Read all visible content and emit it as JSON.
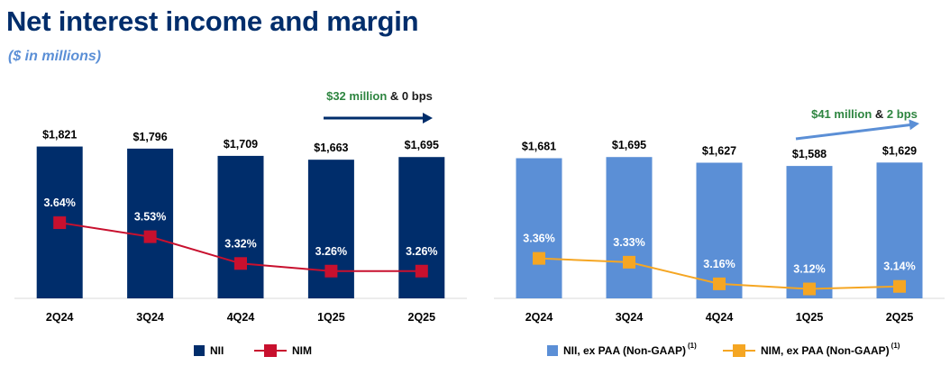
{
  "header": {
    "title": "Net interest income and margin",
    "subtitle": "($ in millions)"
  },
  "colors": {
    "title": "#002d6b",
    "subtitle": "#5b8fd6",
    "nii_bar": "#002d6b",
    "nim_line": "#c8102e",
    "nii_ex_bar": "#5b8fd6",
    "nim_ex_line": "#f5a623",
    "green_text": "#2e8540",
    "dark_arrow": "#002d6b",
    "light_arrow": "#5b8fd6"
  },
  "chart_data": [
    {
      "type": "bar",
      "categories": [
        "2Q24",
        "3Q24",
        "4Q24",
        "1Q25",
        "2Q25"
      ],
      "series": [
        {
          "name": "NII",
          "kind": "bar",
          "values": [
            1821,
            1796,
            1709,
            1663,
            1695
          ],
          "labels": [
            "$1,821",
            "$1,796",
            "$1,709",
            "$1,663",
            "$1,695"
          ]
        },
        {
          "name": "NIM",
          "kind": "line",
          "values": [
            3.64,
            3.53,
            3.32,
            3.26,
            3.26
          ],
          "labels": [
            "3.64%",
            "3.53%",
            "3.32%",
            "3.26%",
            "3.26%"
          ]
        }
      ],
      "legend": [
        {
          "label": "NII",
          "sup": ""
        },
        {
          "label": "NIM",
          "sup": ""
        }
      ],
      "callout": {
        "green": "$32 million",
        "amp": " & ",
        "dark": "0 bps"
      },
      "legend_position": "bottom",
      "grid": false
    },
    {
      "type": "bar",
      "categories": [
        "2Q24",
        "3Q24",
        "4Q24",
        "1Q25",
        "2Q25"
      ],
      "series": [
        {
          "name": "NII, ex PAA (Non-GAAP)",
          "kind": "bar",
          "values": [
            1681,
            1695,
            1627,
            1588,
            1629
          ],
          "labels": [
            "$1,681",
            "$1,695",
            "$1,627",
            "$1,588",
            "$1,629"
          ]
        },
        {
          "name": "NIM, ex PAA (Non-GAAP)",
          "kind": "line",
          "values": [
            3.36,
            3.33,
            3.16,
            3.12,
            3.14
          ],
          "labels": [
            "3.36%",
            "3.33%",
            "3.16%",
            "3.12%",
            "3.14%"
          ]
        }
      ],
      "legend": [
        {
          "label": "NII, ex PAA (Non-GAAP)",
          "sup": "(1)"
        },
        {
          "label": "NIM, ex PAA (Non-GAAP)",
          "sup": "(1)"
        }
      ],
      "callout": {
        "green": "$41 million",
        "amp": " & ",
        "dark": "2 bps"
      },
      "legend_position": "bottom",
      "grid": false
    }
  ]
}
